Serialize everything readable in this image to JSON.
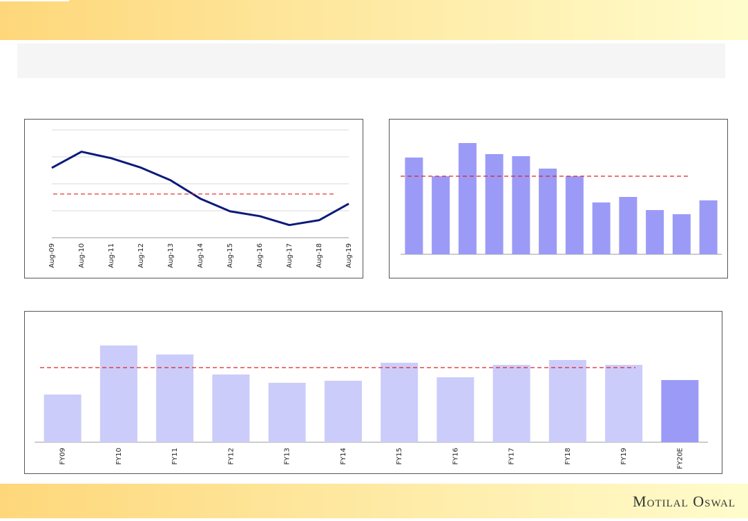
{
  "chart_data": [
    {
      "type": "line",
      "categories": [
        "Aug-09",
        "Aug-10",
        "Aug-11",
        "Aug-12",
        "Aug-13",
        "Aug-14",
        "Aug-15",
        "Aug-16",
        "Aug-17",
        "Aug-18",
        "Aug-19"
      ],
      "values": [
        25.9,
        31.9,
        29.5,
        26.0,
        21.3,
        14.5,
        9.8,
        8.0,
        4.7,
        6.5,
        12.6
      ],
      "average": 16.2,
      "ylim": [
        0,
        40
      ],
      "grid": true,
      "color": "#0a1a7a",
      "average_color": "#e02020"
    },
    {
      "type": "bar",
      "categories": [
        null,
        null,
        null,
        null,
        null,
        null,
        null,
        null,
        null,
        null,
        null,
        null
      ],
      "values": [
        140,
        113,
        161,
        145,
        142,
        124,
        113,
        75,
        83,
        64,
        58,
        78
      ],
      "average": 113,
      "ylim": [
        0,
        180
      ],
      "grid": false,
      "color": "#9b9bf7",
      "average_color": "#e02020"
    },
    {
      "type": "bar",
      "categories": [
        "FY09",
        "FY10",
        "FY11",
        "FY12",
        "FY13",
        "FY14",
        "FY15",
        "FY16",
        "FY17",
        "FY18",
        "FY19",
        "FY20E"
      ],
      "values": [
        69,
        140,
        127,
        98,
        86,
        89,
        115,
        94,
        112,
        119,
        112,
        90
      ],
      "average": 108,
      "ylim": [
        0,
        180
      ],
      "grid": false,
      "colors": [
        "#ccccfb",
        "#ccccfb",
        "#ccccfb",
        "#ccccfb",
        "#ccccfb",
        "#ccccfb",
        "#ccccfb",
        "#ccccfb",
        "#ccccfb",
        "#ccccfb",
        "#ccccfb",
        "#9b9bf7"
      ],
      "average_color": "#e02020"
    }
  ],
  "footer": {
    "logo": "Motilal Oswal"
  }
}
